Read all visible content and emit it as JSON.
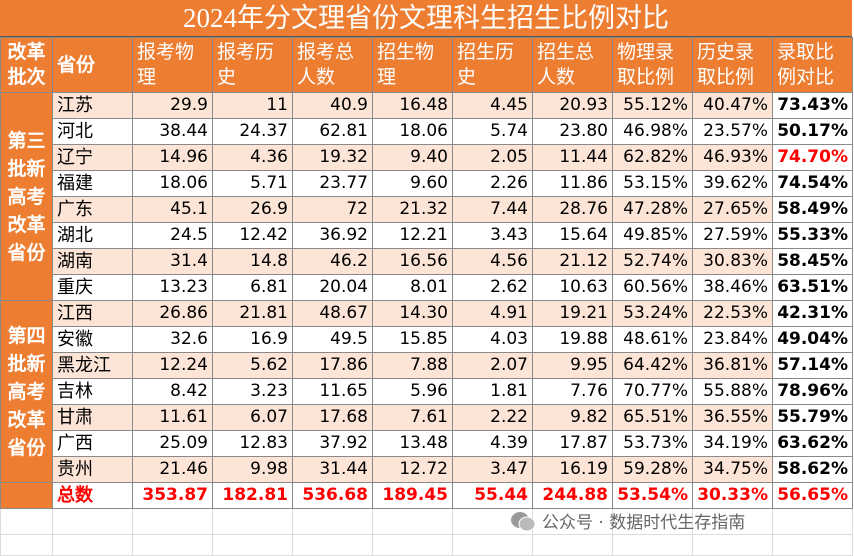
{
  "title": "2024年分文理省份文理科生招生比例对比",
  "header": {
    "batch": "改革批次",
    "province": "省份",
    "columns": [
      "报考物理",
      "报考历史",
      "报考总人数",
      "招生物理",
      "招生历史",
      "招生总人数",
      "物理录取比例",
      "历史录取比例",
      "录取比例对比"
    ]
  },
  "groups": [
    {
      "label": "第三批新高考改革省份",
      "rows": [
        {
          "province": "江苏",
          "values": [
            "29.9",
            "11",
            "40.9",
            "16.48",
            "4.45",
            "20.93",
            "55.12%",
            "40.47%",
            "73.43%"
          ]
        },
        {
          "province": "河北",
          "values": [
            "38.44",
            "24.37",
            "62.81",
            "18.06",
            "5.74",
            "23.80",
            "46.98%",
            "23.57%",
            "50.17%"
          ]
        },
        {
          "province": "辽宁",
          "values": [
            "14.96",
            "4.36",
            "19.32",
            "9.40",
            "2.05",
            "11.44",
            "62.82%",
            "46.93%",
            "74.70%"
          ],
          "color": "#ff0000"
        },
        {
          "province": "福建",
          "values": [
            "18.06",
            "5.71",
            "23.77",
            "9.60",
            "2.26",
            "11.86",
            "53.15%",
            "39.62%",
            "74.54%"
          ]
        },
        {
          "province": "广东",
          "values": [
            "45.1",
            "26.9",
            "72",
            "21.32",
            "7.44",
            "28.76",
            "47.28%",
            "27.65%",
            "58.49%"
          ]
        },
        {
          "province": "湖北",
          "values": [
            "24.5",
            "12.42",
            "36.92",
            "12.21",
            "3.43",
            "15.64",
            "49.85%",
            "27.59%",
            "55.33%"
          ]
        },
        {
          "province": "湖南",
          "values": [
            "31.4",
            "14.8",
            "46.2",
            "16.56",
            "4.56",
            "21.12",
            "52.74%",
            "30.83%",
            "58.45%"
          ]
        },
        {
          "province": "重庆",
          "values": [
            "13.23",
            "6.81",
            "20.04",
            "8.01",
            "2.62",
            "10.63",
            "60.56%",
            "38.46%",
            "63.51%"
          ]
        }
      ]
    },
    {
      "label": "第四批新高考改革省份",
      "rows": [
        {
          "province": "江西",
          "values": [
            "26.86",
            "21.81",
            "48.67",
            "14.30",
            "4.91",
            "19.21",
            "53.24%",
            "22.53%",
            "42.31%"
          ]
        },
        {
          "province": "安徽",
          "values": [
            "32.6",
            "16.9",
            "49.5",
            "15.85",
            "4.03",
            "19.88",
            "48.61%",
            "23.84%",
            "49.04%"
          ]
        },
        {
          "province": "黑龙江",
          "values": [
            "12.24",
            "5.62",
            "17.86",
            "7.88",
            "2.07",
            "9.95",
            "64.42%",
            "36.81%",
            "57.14%"
          ]
        },
        {
          "province": "吉林",
          "values": [
            "8.42",
            "3.23",
            "11.65",
            "5.96",
            "1.81",
            "7.76",
            "70.77%",
            "55.88%",
            "78.96%"
          ]
        },
        {
          "province": "甘肃",
          "values": [
            "11.61",
            "6.07",
            "17.68",
            "7.61",
            "2.22",
            "9.82",
            "65.51%",
            "36.55%",
            "55.79%"
          ]
        },
        {
          "province": "广西",
          "values": [
            "25.09",
            "12.83",
            "37.92",
            "13.48",
            "4.39",
            "17.87",
            "53.73%",
            "34.19%",
            "63.62%"
          ]
        },
        {
          "province": "贵州",
          "values": [
            "21.46",
            "9.98",
            "31.44",
            "12.72",
            "3.47",
            "16.19",
            "59.28%",
            "34.75%",
            "58.62%"
          ]
        }
      ]
    }
  ],
  "total": {
    "label": "总数",
    "values": [
      "353.87",
      "182.81",
      "536.68",
      "189.45",
      "55.44",
      "244.88",
      "53.54%",
      "30.33%",
      "56.65%"
    ]
  },
  "watermark": "公众号 · 数据时代生存指南"
}
